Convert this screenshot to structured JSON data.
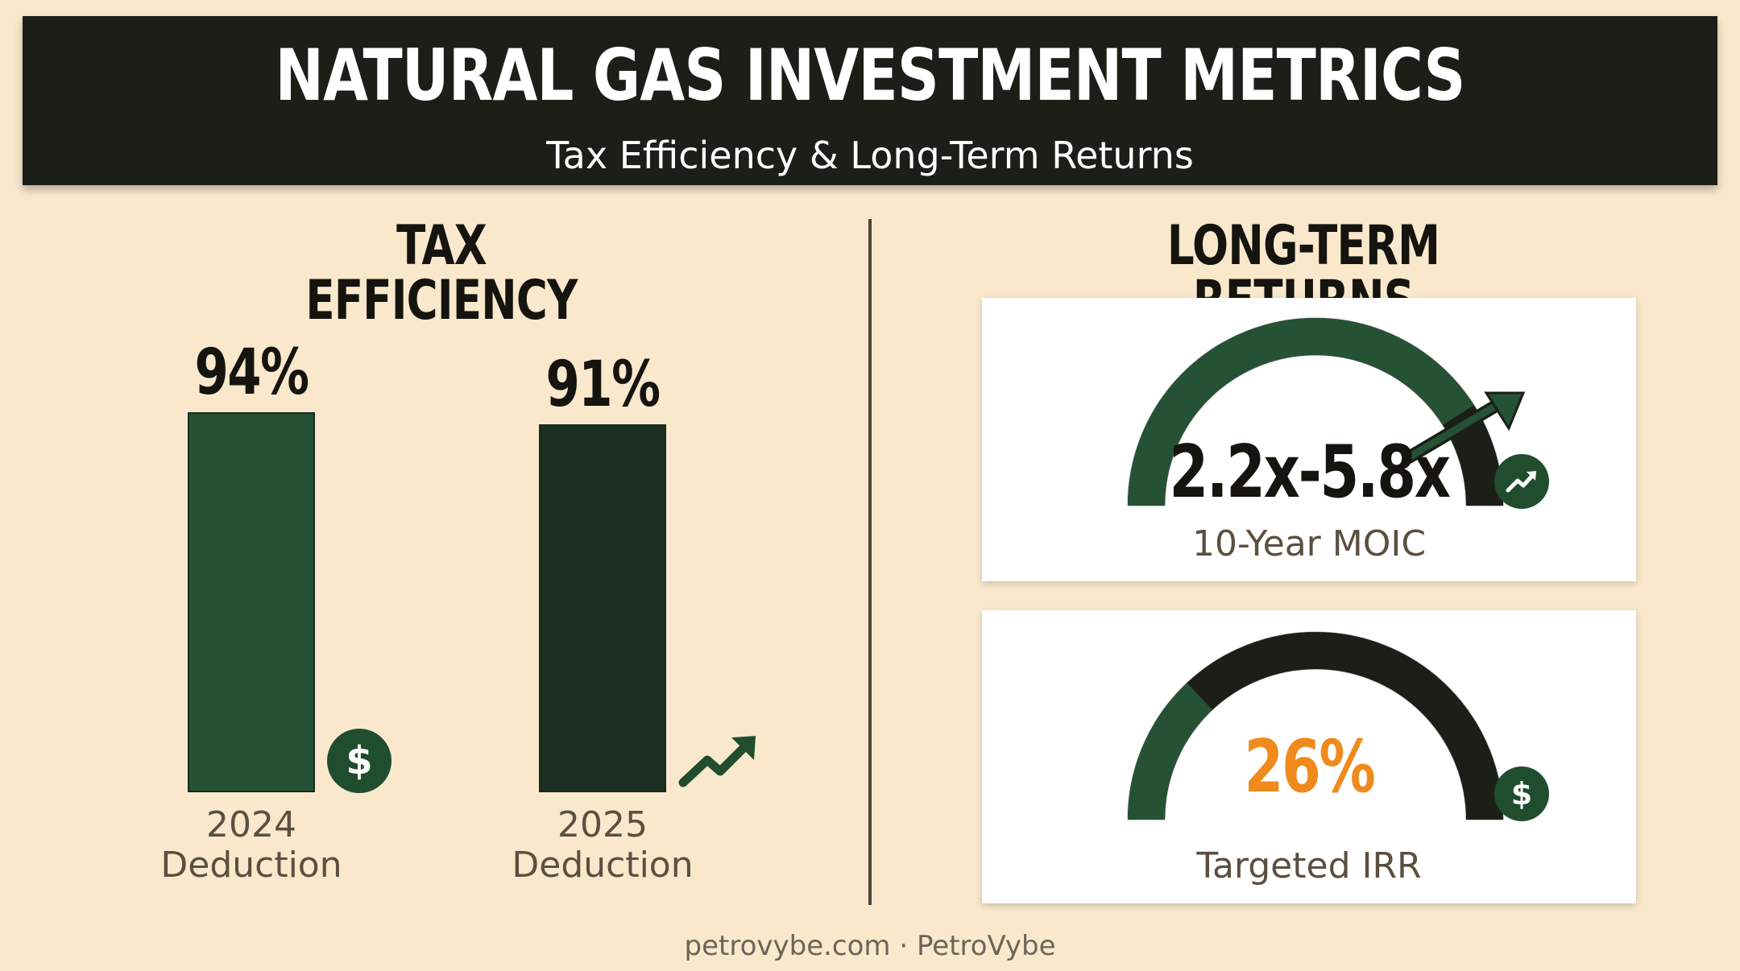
{
  "header": {
    "title": "NATURAL GAS INVESTMENT METRICS",
    "subtitle": "Tax Efficiency & Long-Term Returns"
  },
  "sections": {
    "left_title": "TAX EFFICIENCY",
    "right_title": "LONG-TERM RETURNS"
  },
  "chart_data": [
    {
      "type": "bar",
      "title": "TAX EFFICIENCY",
      "categories": [
        "2024 Deduction",
        "2025 Deduction"
      ],
      "category_lines": [
        [
          "2024",
          "Deduction"
        ],
        [
          "2025",
          "Deduction"
        ]
      ],
      "values": [
        94,
        91
      ],
      "value_labels": [
        "94%",
        "91%"
      ],
      "ylim": [
        0,
        100
      ],
      "colors": [
        "#255235",
        "#1a2f22"
      ],
      "icons": [
        "dollar-icon",
        "trending-up-icon"
      ]
    },
    {
      "type": "gauge",
      "label": "10-Year MOIC",
      "value_text": "2.2x-5.8x",
      "range": [
        2.2,
        5.8
      ],
      "fill_fraction": 0.82,
      "fill_color": "#255235",
      "track_color": "#1b1f18",
      "value_color": "#15140f",
      "icon": "trending-up-icon"
    },
    {
      "type": "gauge",
      "label": "Targeted IRR",
      "value_text": "26%",
      "value": 26,
      "fill_fraction": 0.26,
      "fill_color": "#255235",
      "track_color": "#1b1f18",
      "value_color": "#f08a1c",
      "icon": "dollar-icon"
    }
  ],
  "footer": {
    "text": "petrovybe.com · PetroVybe"
  },
  "colors": {
    "background": "#f9e8cc",
    "header": "#1b1f18",
    "accent_green": "#1f4d2e",
    "accent_orange": "#f08a1c"
  }
}
